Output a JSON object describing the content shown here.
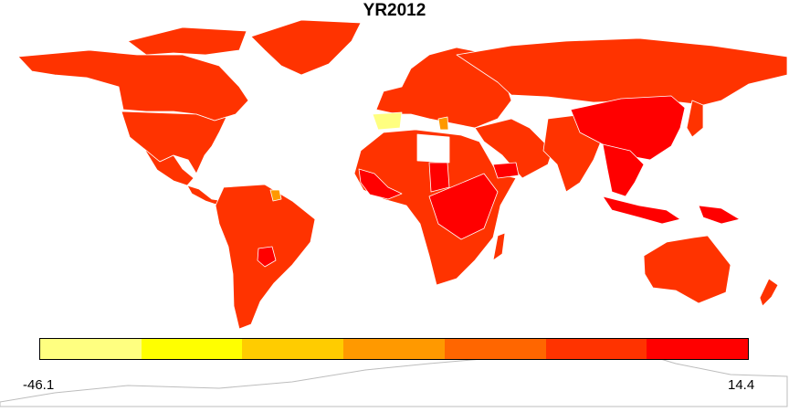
{
  "title": "YR2012",
  "legend": {
    "min_label": "-46.1",
    "max_label": "14.4",
    "min_value": -46.1,
    "max_value": 14.4,
    "bins": [
      {
        "color": "#FFFF80"
      },
      {
        "color": "#FFFF00"
      },
      {
        "color": "#FFCC00"
      },
      {
        "color": "#FF9900"
      },
      {
        "color": "#FF6600"
      },
      {
        "color": "#FF3300"
      },
      {
        "color": "#FF0000"
      }
    ]
  },
  "colors": {
    "dominant": "#FF3300",
    "high": "#FF0000",
    "no_data": "#FFFFFF",
    "border": "#FFFFFF",
    "antarctica_outline": "#BDBDBD"
  },
  "regions": [
    {
      "name": "greenland",
      "color": "#FF3300"
    },
    {
      "name": "canada",
      "color": "#FF3300"
    },
    {
      "name": "arctic-islands",
      "color": "#FF3300"
    },
    {
      "name": "united-states",
      "color": "#FF3300"
    },
    {
      "name": "mexico",
      "color": "#FF3300"
    },
    {
      "name": "central-america",
      "color": "#FF3300"
    },
    {
      "name": "south-america",
      "color": "#FF3300"
    },
    {
      "name": "paraguay",
      "color": "#FF0000"
    },
    {
      "name": "guyana",
      "color": "#FF9900"
    },
    {
      "name": "europe",
      "color": "#FF3300"
    },
    {
      "name": "spain",
      "color": "#FFFF80"
    },
    {
      "name": "greece",
      "color": "#FF9900"
    },
    {
      "name": "africa",
      "color": "#FF3300"
    },
    {
      "name": "libya",
      "color": "#FFFFFF"
    },
    {
      "name": "west-africa",
      "color": "#FF0000"
    },
    {
      "name": "chad",
      "color": "#FF0000"
    },
    {
      "name": "east-africa",
      "color": "#FF0000"
    },
    {
      "name": "madagascar",
      "color": "#FF3300"
    },
    {
      "name": "middle-east",
      "color": "#FF3300"
    },
    {
      "name": "yemen",
      "color": "#FF0000"
    },
    {
      "name": "russia",
      "color": "#FF3300"
    },
    {
      "name": "south-asia",
      "color": "#FF3300"
    },
    {
      "name": "china",
      "color": "#FF0000"
    },
    {
      "name": "southeast-asia",
      "color": "#FF0000"
    },
    {
      "name": "japan",
      "color": "#FF3300"
    },
    {
      "name": "indonesia",
      "color": "#FF0000"
    },
    {
      "name": "new-guinea",
      "color": "#FF0000"
    },
    {
      "name": "australia",
      "color": "#FF3300"
    },
    {
      "name": "new-zealand",
      "color": "#FF3300"
    },
    {
      "name": "antarctica",
      "color": "#FFFFFF"
    }
  ]
}
